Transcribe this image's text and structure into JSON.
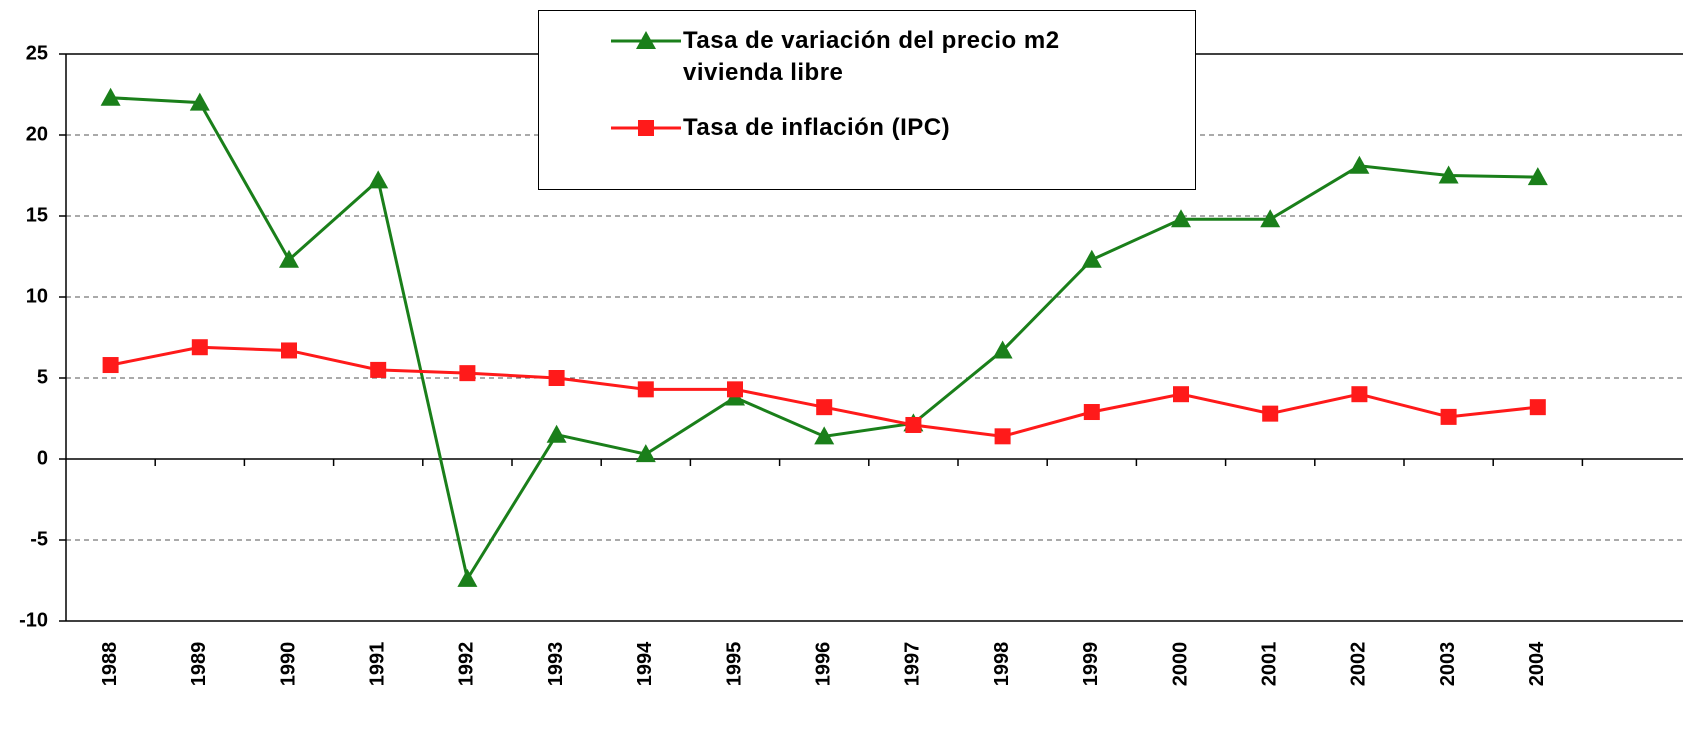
{
  "chart_data": {
    "type": "line",
    "categories": [
      "1988",
      "1989",
      "1990",
      "1991",
      "1992",
      "1993",
      "1994",
      "1995",
      "1996",
      "1997",
      "1998",
      "1999",
      "2000",
      "2001",
      "2002",
      "2003",
      "2004"
    ],
    "series": [
      {
        "name": "Tasa de variación del precio m2 vivienda libre",
        "color": "#1a7f1a",
        "marker": "triangle",
        "values": [
          22.3,
          22.0,
          12.3,
          17.2,
          -7.4,
          1.5,
          0.3,
          3.8,
          1.4,
          2.2,
          6.7,
          12.3,
          14.8,
          14.8,
          18.1,
          17.5,
          17.4
        ]
      },
      {
        "name": "Tasa de inflación (IPC)",
        "color": "#ff1a1a",
        "marker": "square",
        "values": [
          5.8,
          6.9,
          6.7,
          5.5,
          5.3,
          5.0,
          4.3,
          4.3,
          3.2,
          2.1,
          1.4,
          2.9,
          4.0,
          2.8,
          4.0,
          2.6,
          3.2
        ]
      }
    ],
    "ylim": [
      -10,
      25
    ],
    "yticks": [
      -10,
      -5,
      0,
      5,
      10,
      15,
      20,
      25
    ],
    "grid": true
  }
}
